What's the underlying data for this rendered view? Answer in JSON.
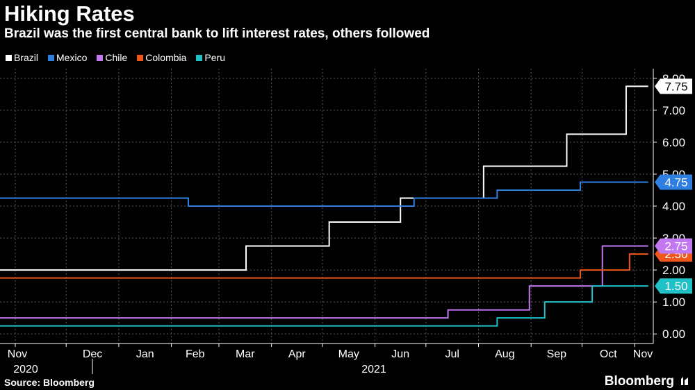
{
  "header": {
    "title": "Hiking Rates",
    "subtitle": "Brazil was the first central bank to lift interest rates, others followed"
  },
  "footer": {
    "source": "Source: Bloomberg",
    "brand": "Bloomberg"
  },
  "chart_data": {
    "type": "line",
    "step": true,
    "title": "Hiking Rates",
    "subtitle": "Brazil was the first central bank to lift interest rates, others followed",
    "xlabel": "",
    "ylabel": "",
    "x_range": [
      "2020-10-23",
      "2021-11-12"
    ],
    "ylim": [
      -0.3,
      8.3
    ],
    "y_ticks": [
      0,
      1,
      2,
      3,
      4,
      5,
      6,
      7,
      8
    ],
    "y_tick_labels": [
      "0.00",
      "1.00",
      "2.00",
      "3.00",
      "4.00",
      "5.00",
      "6.00",
      "7.00",
      "8.00"
    ],
    "x_ticks": [
      {
        "date": "2020-11-01",
        "label": "Nov"
      },
      {
        "date": "2020-12-01",
        "label": "Dec"
      },
      {
        "date": "2021-01-01",
        "label": "Jan"
      },
      {
        "date": "2021-02-01",
        "label": "Feb"
      },
      {
        "date": "2021-03-01",
        "label": "Mar"
      },
      {
        "date": "2021-04-01",
        "label": "Apr"
      },
      {
        "date": "2021-05-01",
        "label": "May"
      },
      {
        "date": "2021-06-01",
        "label": "Jun"
      },
      {
        "date": "2021-07-01",
        "label": "Jul"
      },
      {
        "date": "2021-08-01",
        "label": "Aug"
      },
      {
        "date": "2021-09-01",
        "label": "Sep"
      },
      {
        "date": "2021-10-01",
        "label": "Oct"
      },
      {
        "date": "2021-11-01",
        "label": "Nov"
      }
    ],
    "years": [
      {
        "date": "2020-11-15",
        "label": "2020"
      },
      {
        "date": "2021-06-01",
        "label": "2021"
      }
    ],
    "year_divider": "2021-01-01",
    "grid": true,
    "legend_position": "top-left",
    "series": [
      {
        "name": "Brazil",
        "color": "#ffffff",
        "end_label": "7.75",
        "points": [
          [
            "2020-10-23",
            2.0
          ],
          [
            "2021-03-17",
            2.75
          ],
          [
            "2021-05-05",
            3.5
          ],
          [
            "2021-06-16",
            4.25
          ],
          [
            "2021-08-04",
            5.25
          ],
          [
            "2021-09-22",
            6.25
          ],
          [
            "2021-10-27",
            7.75
          ],
          [
            "2021-11-09",
            7.75
          ]
        ]
      },
      {
        "name": "Mexico",
        "color": "#2f7fe0",
        "end_label": "4.75",
        "points": [
          [
            "2020-10-23",
            4.25
          ],
          [
            "2021-02-11",
            4.0
          ],
          [
            "2021-06-24",
            4.25
          ],
          [
            "2021-08-12",
            4.5
          ],
          [
            "2021-09-30",
            4.75
          ],
          [
            "2021-11-09",
            4.75
          ]
        ]
      },
      {
        "name": "Chile",
        "color": "#c278f0",
        "end_label": "2.75",
        "points": [
          [
            "2020-10-23",
            0.5
          ],
          [
            "2021-07-14",
            0.75
          ],
          [
            "2021-08-31",
            1.5
          ],
          [
            "2021-10-13",
            2.75
          ],
          [
            "2021-11-09",
            2.75
          ]
        ]
      },
      {
        "name": "Colombia",
        "color": "#f0571b",
        "end_label": "2.50",
        "points": [
          [
            "2020-10-23",
            1.75
          ],
          [
            "2021-09-30",
            2.0
          ],
          [
            "2021-10-29",
            2.5
          ],
          [
            "2021-11-09",
            2.5
          ]
        ]
      },
      {
        "name": "Peru",
        "color": "#1fc0c6",
        "end_label": "1.50",
        "points": [
          [
            "2020-10-23",
            0.25
          ],
          [
            "2021-08-12",
            0.5
          ],
          [
            "2021-09-09",
            1.0
          ],
          [
            "2021-10-07",
            1.5
          ],
          [
            "2021-11-09",
            1.5
          ]
        ]
      }
    ]
  }
}
